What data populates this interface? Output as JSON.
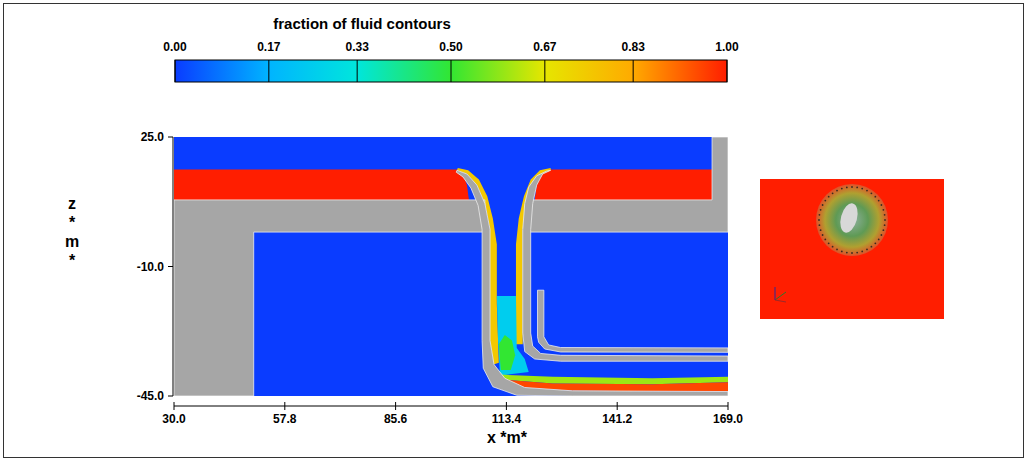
{
  "chart_data": {
    "type": "contour",
    "title": "fraction of fluid contours",
    "x_label": "x *m*",
    "y_label": "z *m*",
    "xlim": [
      30,
      169
    ],
    "ylim": [
      -45,
      25
    ],
    "xticks": [
      {
        "value": 30,
        "label": "30.0"
      },
      57.8,
      85.6,
      113.4,
      141.2,
      {
        "value": 169,
        "label": "169.0"
      }
    ],
    "yticks": [
      {
        "value": -45,
        "label": "-45.0"
      },
      {
        "value": -10,
        "label": "-10.0"
      },
      {
        "value": 25,
        "label": "25.0"
      }
    ],
    "colorbar": {
      "range": [
        0,
        1
      ],
      "ticks": [
        {
          "value": 0,
          "label": "0.00"
        },
        0.17,
        0.33,
        {
          "value": 0.5,
          "label": "0.50"
        },
        0.67,
        0.83,
        {
          "value": 1,
          "label": "1.00"
        }
      ]
    },
    "regions": [
      {
        "fraction": 0,
        "points": [
          [
            30,
            25
          ],
          [
            169,
            25
          ],
          [
            169,
            -45
          ],
          [
            30,
            -45
          ]
        ]
      },
      {
        "fraction": 1,
        "points": [
          [
            30,
            16.2
          ],
          [
            101,
            16.2
          ],
          [
            102.5,
            15.2
          ],
          [
            103.5,
            12
          ],
          [
            104,
            8
          ],
          [
            30,
            8
          ]
        ]
      },
      {
        "fraction": 1,
        "points": [
          [
            124,
            16.2
          ],
          [
            165,
            16.2
          ],
          [
            165,
            8
          ],
          [
            120.5,
            8
          ],
          [
            121,
            12
          ],
          [
            122.3,
            15.2
          ]
        ]
      },
      {
        "fraction": 0.75,
        "points": [
          [
            101.2,
            16.6
          ],
          [
            103.8,
            16
          ],
          [
            106.5,
            13.5
          ],
          [
            108.6,
            9
          ],
          [
            110,
            3
          ],
          [
            111,
            -4
          ],
          [
            111,
            -20
          ],
          [
            111.5,
            -36
          ],
          [
            110.2,
            -36.5
          ],
          [
            109.3,
            -30
          ],
          [
            109.3,
            0
          ],
          [
            108,
            7
          ],
          [
            106,
            12
          ],
          [
            103.5,
            15
          ],
          [
            101,
            16
          ]
        ]
      },
      {
        "fraction": 0.75,
        "points": [
          [
            124.5,
            16.6
          ],
          [
            121.8,
            16
          ],
          [
            119.5,
            13.5
          ],
          [
            117.8,
            9
          ],
          [
            116.5,
            3
          ],
          [
            115.8,
            -4
          ],
          [
            115.8,
            -20
          ],
          [
            115.5,
            -31
          ],
          [
            117.5,
            -31
          ],
          [
            117.5,
            0
          ],
          [
            118.5,
            7
          ],
          [
            120.5,
            12
          ],
          [
            122.5,
            15
          ],
          [
            124.5,
            16
          ]
        ]
      },
      {
        "fraction": 0.25,
        "points": [
          [
            111,
            -18
          ],
          [
            115.8,
            -18
          ],
          [
            116,
            -32
          ],
          [
            118,
            -35
          ],
          [
            119,
            -38.5
          ],
          [
            111.8,
            -39.5
          ],
          [
            111.3,
            -30
          ]
        ]
      },
      {
        "fraction": 0.5,
        "points": [
          [
            111.5,
            -31
          ],
          [
            113,
            -28.5
          ],
          [
            114.8,
            -30
          ],
          [
            115.6,
            -34
          ],
          [
            114.5,
            -38
          ],
          [
            112,
            -38
          ]
        ]
      },
      {
        "fraction": 0.6,
        "points": [
          [
            111.5,
            -39.2
          ],
          [
            125,
            -39.8
          ],
          [
            150,
            -40.2
          ],
          [
            169,
            -39.8
          ],
          [
            169,
            -41.3
          ],
          [
            150,
            -41.8
          ],
          [
            125,
            -41.6
          ],
          [
            113,
            -40.6
          ]
        ]
      },
      {
        "fraction": 0.95,
        "points": [
          [
            113,
            -40.6
          ],
          [
            125,
            -41.6
          ],
          [
            150,
            -41.8
          ],
          [
            169,
            -41.3
          ],
          [
            169,
            -43.8
          ],
          [
            130,
            -43.6
          ],
          [
            118,
            -42.7
          ]
        ]
      }
    ],
    "obstacles": [
      {
        "points": [
          [
            30,
            8
          ],
          [
            108,
            8
          ],
          [
            108,
            -0.7
          ],
          [
            50,
            -0.7
          ],
          [
            50,
            -45
          ],
          [
            30,
            -45
          ]
        ]
      },
      {
        "points": [
          [
            101,
            16
          ],
          [
            103.5,
            15
          ],
          [
            106,
            12
          ],
          [
            108,
            7
          ],
          [
            109.3,
            0
          ],
          [
            109.3,
            -30
          ],
          [
            110.3,
            -36.5
          ],
          [
            113,
            -40.2
          ],
          [
            118,
            -42.7
          ],
          [
            130,
            -43.6
          ],
          [
            169,
            -43.8
          ],
          [
            169,
            -45
          ],
          [
            130,
            -45
          ],
          [
            116,
            -44.8
          ],
          [
            110,
            -42.5
          ],
          [
            107.6,
            -37.5
          ],
          [
            107.3,
            -30
          ],
          [
            107.3,
            0
          ],
          [
            106.3,
            6.5
          ],
          [
            104.5,
            11.2
          ],
          [
            102.5,
            14.2
          ],
          [
            100.8,
            15.5
          ]
        ]
      },
      {
        "points": [
          [
            118.5,
            8
          ],
          [
            165,
            8
          ],
          [
            165,
            25
          ],
          [
            169,
            25
          ],
          [
            169,
            -0.7
          ],
          [
            118.5,
            -0.7
          ]
        ]
      },
      {
        "points": [
          [
            124.5,
            16
          ],
          [
            122.5,
            15
          ],
          [
            121,
            12
          ],
          [
            120,
            7
          ],
          [
            119.5,
            0
          ],
          [
            119.5,
            -28
          ],
          [
            120,
            -31.5
          ],
          [
            122,
            -33.5
          ],
          [
            127,
            -34
          ],
          [
            169,
            -34.2
          ],
          [
            169,
            -35.6
          ],
          [
            127,
            -35.6
          ],
          [
            120.5,
            -35
          ],
          [
            118,
            -33
          ],
          [
            117.5,
            -28
          ],
          [
            117.5,
            0
          ],
          [
            118,
            7
          ],
          [
            119,
            11.5
          ],
          [
            121,
            14.5
          ],
          [
            123.5,
            15.8
          ]
        ]
      },
      {
        "points": [
          [
            121.2,
            -16.4
          ],
          [
            122.8,
            -16.4
          ],
          [
            122.8,
            -29
          ],
          [
            124,
            -31.2
          ],
          [
            127,
            -31.9
          ],
          [
            169,
            -32
          ],
          [
            169,
            -33.2
          ],
          [
            127,
            -33.1
          ],
          [
            123,
            -32.3
          ],
          [
            121.5,
            -30.5
          ],
          [
            121.2,
            -29
          ]
        ]
      }
    ]
  }
}
